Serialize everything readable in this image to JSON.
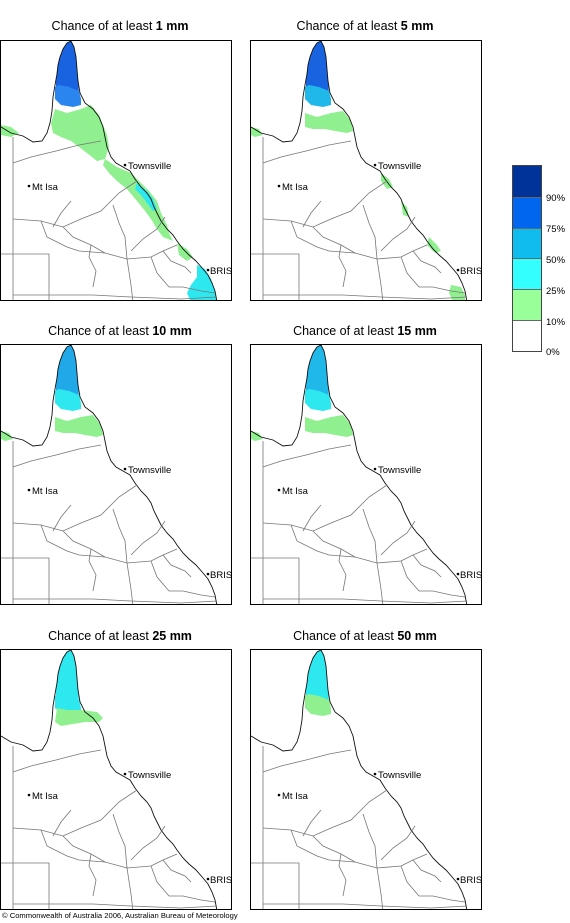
{
  "panels": [
    {
      "title_prefix": "Chance of at least ",
      "amount": "1 mm",
      "fills": [
        {
          "shape": "york",
          "color": "#1a63e0"
        },
        {
          "shape": "york_low",
          "color": "#2a86ee"
        },
        {
          "shape": "gulf_band",
          "color": "#90f090"
        },
        {
          "shape": "east_coast",
          "color": "#90f090"
        },
        {
          "shape": "east_cyan",
          "color": "#2ee8f0"
        },
        {
          "shape": "southeast",
          "color": "#2ee8f0"
        }
      ]
    },
    {
      "title_prefix": "Chance of at least ",
      "amount": "5 mm",
      "fills": [
        {
          "shape": "york",
          "color": "#1a63e0"
        },
        {
          "shape": "york_low",
          "color": "#20b8e8"
        },
        {
          "shape": "gulf_band_small",
          "color": "#90f090"
        },
        {
          "shape": "east_dots",
          "color": "#90f090"
        },
        {
          "shape": "southeast_small",
          "color": "#90f090"
        }
      ]
    },
    {
      "title_prefix": "Chance of at least ",
      "amount": "10 mm",
      "fills": [
        {
          "shape": "york_tip",
          "color": "#1a50c8"
        },
        {
          "shape": "york",
          "color": "#20a8e8"
        },
        {
          "shape": "york_low",
          "color": "#2ee8f0"
        },
        {
          "shape": "gulf_band_small",
          "color": "#90f090"
        }
      ]
    },
    {
      "title_prefix": "Chance of at least ",
      "amount": "15 mm",
      "fills": [
        {
          "shape": "york",
          "color": "#20b8e8"
        },
        {
          "shape": "york_low",
          "color": "#2ee8f0"
        },
        {
          "shape": "gulf_band_small",
          "color": "#90f090"
        }
      ]
    },
    {
      "title_prefix": "Chance of at least ",
      "amount": "25 mm",
      "fills": [
        {
          "shape": "york",
          "color": "#2ee8f0"
        },
        {
          "shape": "york_low",
          "color": "#2ee8f0"
        },
        {
          "shape": "gulf_band_tiny",
          "color": "#90f090"
        }
      ]
    },
    {
      "title_prefix": "Chance of at least ",
      "amount": "50 mm",
      "fills": [
        {
          "shape": "york",
          "color": "#2ee8f0"
        },
        {
          "shape": "york_low",
          "color": "#90f090"
        }
      ]
    }
  ],
  "places": {
    "townsville": "Townsville",
    "mt_isa": "Mt Isa",
    "brisbane": "BRIS"
  },
  "legend": {
    "colors": [
      "#003399",
      "#0066ee",
      "#10bbee",
      "#33ffff",
      "#99ff99",
      "#ffffff"
    ],
    "labels": [
      "90%",
      "75%",
      "50%",
      "25%",
      "10%",
      "0%"
    ]
  },
  "footer": "© Commonwealth of Australia 2006, Australian Bureau of Meteorology"
}
